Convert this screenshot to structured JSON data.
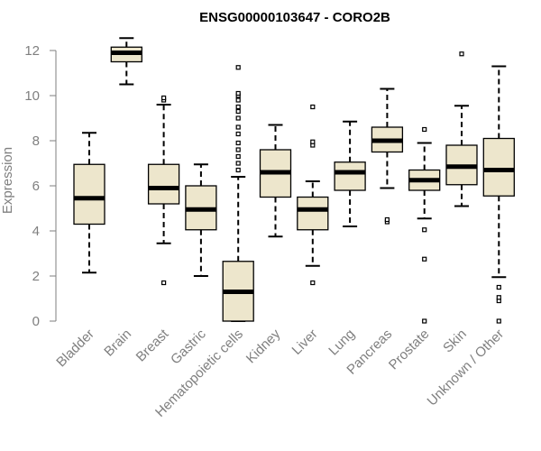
{
  "chart_data": {
    "type": "boxplot",
    "title": "ENSG00000103647 - CORO2B",
    "ylabel": "Expression",
    "xlabel": "",
    "ylim": [
      0,
      12.6
    ],
    "yticks": [
      "0",
      "2",
      "4",
      "6",
      "8",
      "10",
      "12"
    ],
    "grid": false,
    "box_fill": "#ede6cc",
    "median_color": "#000000",
    "categories": [
      "Bladder",
      "Brain",
      "Breast",
      "Gastric",
      "Hematopoietic cells",
      "Kidney",
      "Liver",
      "Lung",
      "Pancreas",
      "Prostate",
      "Skin",
      "Unknown / Other"
    ],
    "boxes": [
      {
        "whisker_low": 2.15,
        "q1": 4.3,
        "median": 5.45,
        "q3": 6.95,
        "whisker_high": 8.35,
        "outliers": []
      },
      {
        "whisker_low": 10.5,
        "q1": 11.5,
        "median": 11.9,
        "q3": 12.15,
        "whisker_high": 12.55,
        "outliers": []
      },
      {
        "whisker_low": 3.45,
        "q1": 5.2,
        "median": 5.9,
        "q3": 6.95,
        "whisker_high": 9.6,
        "outliers": [
          1.7,
          9.8,
          9.9
        ]
      },
      {
        "whisker_low": 2.0,
        "q1": 4.05,
        "median": 4.95,
        "q3": 6.0,
        "whisker_high": 6.95,
        "outliers": []
      },
      {
        "whisker_low": 0.0,
        "q1": 0.0,
        "median": 1.3,
        "q3": 2.65,
        "whisker_high": 6.4,
        "outliers": [
          6.7,
          7.0,
          7.3,
          7.6,
          7.9,
          8.3,
          8.6,
          9.0,
          9.3,
          9.5,
          9.8,
          10.0,
          10.1,
          11.25
        ]
      },
      {
        "whisker_low": 3.75,
        "q1": 5.5,
        "median": 6.6,
        "q3": 7.6,
        "whisker_high": 8.7,
        "outliers": []
      },
      {
        "whisker_low": 2.45,
        "q1": 4.05,
        "median": 4.95,
        "q3": 5.5,
        "whisker_high": 6.2,
        "outliers": [
          1.7,
          7.8,
          7.95,
          9.5
        ]
      },
      {
        "whisker_low": 4.2,
        "q1": 5.8,
        "median": 6.6,
        "q3": 7.05,
        "whisker_high": 8.85,
        "outliers": []
      },
      {
        "whisker_low": 5.9,
        "q1": 7.5,
        "median": 8.0,
        "q3": 8.6,
        "whisker_high": 10.3,
        "outliers": [
          4.4,
          4.5
        ]
      },
      {
        "whisker_low": 4.55,
        "q1": 5.8,
        "median": 6.25,
        "q3": 6.7,
        "whisker_high": 7.9,
        "outliers": [
          0.0,
          2.75,
          4.05,
          8.5
        ]
      },
      {
        "whisker_low": 5.1,
        "q1": 6.05,
        "median": 6.85,
        "q3": 7.8,
        "whisker_high": 9.55,
        "outliers": [
          11.85
        ]
      },
      {
        "whisker_low": 1.95,
        "q1": 5.55,
        "median": 6.7,
        "q3": 8.1,
        "whisker_high": 11.3,
        "outliers": [
          0.0,
          0.9,
          1.05,
          1.5
        ]
      }
    ]
  }
}
